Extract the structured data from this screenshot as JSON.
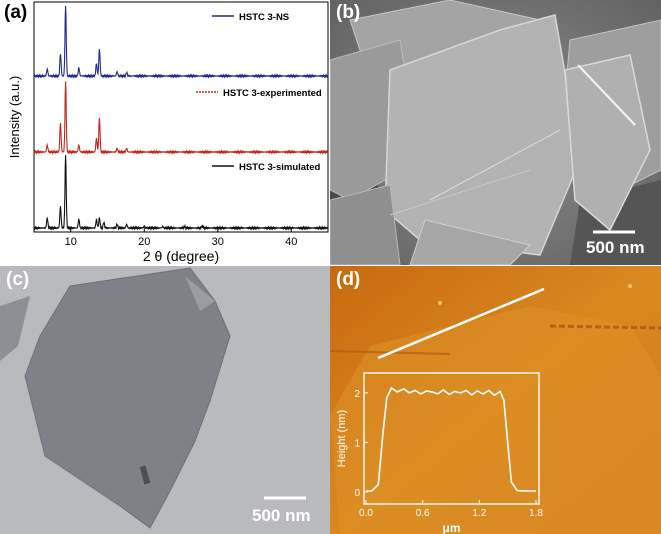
{
  "figure": {
    "panel_labels": [
      "(a)",
      "(b)",
      "(c)",
      "(d)"
    ],
    "scale_bars": {
      "b": "500 nm",
      "c": "500 nm"
    },
    "colors": {
      "ns": "#1f2a8c",
      "experimented": "#c0281e",
      "simulated": "#111111",
      "afm_line": "#ffffff"
    }
  },
  "chart_data": [
    {
      "type": "line",
      "panel": "(a)",
      "xlabel": "2 θ (degree)",
      "ylabel": "Intensity (a.u.)",
      "xlim": [
        5,
        45
      ],
      "xticks": [
        10,
        20,
        30,
        40
      ],
      "show_yticks": false,
      "grid": false,
      "legend": "inline-per-trace",
      "series": [
        {
          "name": "HSTC 3-NS",
          "color": "#1f2a8c",
          "peaks": [
            [
              6.8,
              0.1
            ],
            [
              8.6,
              0.32
            ],
            [
              9.3,
              1.0
            ],
            [
              11.1,
              0.12
            ],
            [
              13.5,
              0.18
            ],
            [
              13.9,
              0.38
            ],
            [
              16.3,
              0.06
            ],
            [
              17.6,
              0.05
            ]
          ]
        },
        {
          "name": "HSTC 3-experimented",
          "color": "#c0281e",
          "peaks": [
            [
              6.8,
              0.1
            ],
            [
              8.6,
              0.42
            ],
            [
              9.3,
              1.0
            ],
            [
              11.1,
              0.1
            ],
            [
              13.5,
              0.2
            ],
            [
              13.9,
              0.48
            ],
            [
              16.3,
              0.05
            ],
            [
              17.6,
              0.05
            ]
          ]
        },
        {
          "name": "HSTC 3-simulated",
          "color": "#111111",
          "peaks": [
            [
              6.8,
              0.14
            ],
            [
              8.6,
              0.3
            ],
            [
              9.3,
              1.0
            ],
            [
              11.1,
              0.12
            ],
            [
              13.5,
              0.12
            ],
            [
              13.9,
              0.14
            ],
            [
              14.5,
              0.08
            ],
            [
              16.3,
              0.05
            ],
            [
              17.6,
              0.05
            ],
            [
              20.0,
              0.03
            ],
            [
              22.5,
              0.02
            ],
            [
              25.5,
              0.02
            ],
            [
              27.9,
              0.03
            ]
          ]
        }
      ]
    },
    {
      "type": "line",
      "panel": "(d) inset",
      "xlabel": "μm",
      "ylabel": "Height (nm)",
      "xlim": [
        0.0,
        1.8
      ],
      "ylim": [
        0,
        2.3
      ],
      "xticks": [
        "0.0",
        "0.6",
        "1.2",
        "1.8"
      ],
      "yticks": [
        "0",
        "1",
        "2"
      ],
      "x": [
        0.0,
        0.06,
        0.13,
        0.18,
        0.22,
        0.27,
        0.33,
        0.4,
        0.46,
        0.52,
        0.58,
        0.64,
        0.7,
        0.76,
        0.82,
        0.88,
        0.94,
        1.0,
        1.06,
        1.12,
        1.18,
        1.24,
        1.3,
        1.36,
        1.42,
        1.46,
        1.5,
        1.54,
        1.6,
        1.66,
        1.72,
        1.8
      ],
      "y": [
        0.02,
        0.02,
        0.15,
        1.2,
        1.9,
        2.1,
        2.02,
        2.08,
        2.0,
        2.05,
        1.98,
        2.04,
        2.02,
        1.98,
        2.06,
        1.97,
        2.03,
        2.0,
        2.05,
        1.96,
        2.04,
        1.98,
        2.05,
        1.95,
        2.03,
        1.85,
        1.0,
        0.2,
        0.03,
        0.02,
        0.02,
        0.02
      ]
    }
  ]
}
